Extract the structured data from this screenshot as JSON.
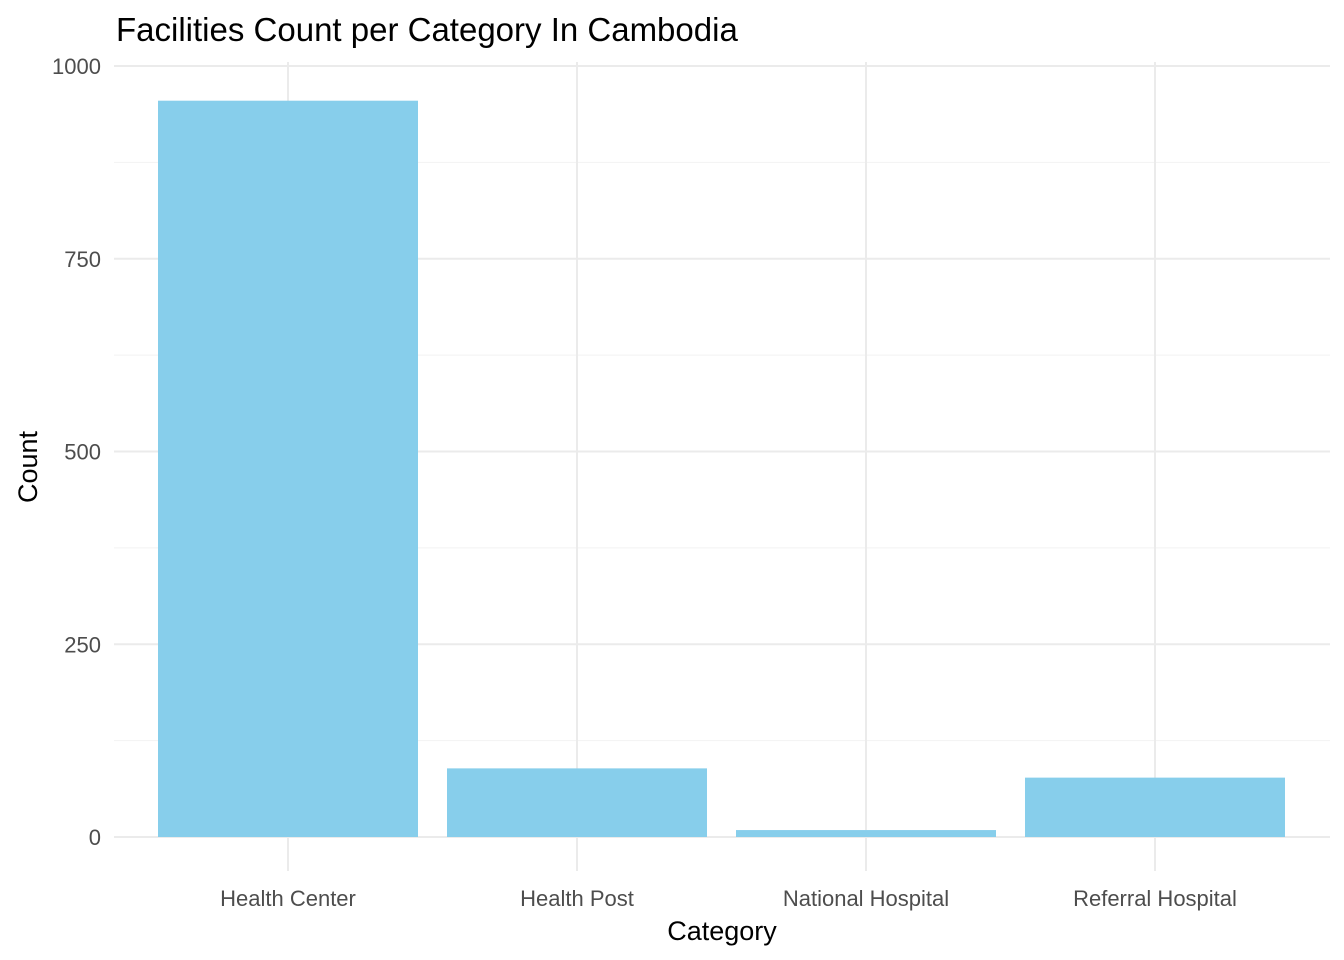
{
  "chart_data": {
    "type": "bar",
    "title": "Facilities Count per Category In Cambodia",
    "xlabel": "Category",
    "ylabel": "Count",
    "categories": [
      "Health Center",
      "Health Post",
      "National Hospital",
      "Referral Hospital"
    ],
    "values": [
      955,
      89,
      9,
      77
    ],
    "ylim": [
      0,
      1000
    ],
    "yticks": [
      0,
      250,
      500,
      750,
      1000
    ],
    "ytick_labels": [
      "0",
      "250",
      "500",
      "750",
      "1000"
    ],
    "bar_color": "#87ceeb",
    "grid": true,
    "legend": "none"
  }
}
